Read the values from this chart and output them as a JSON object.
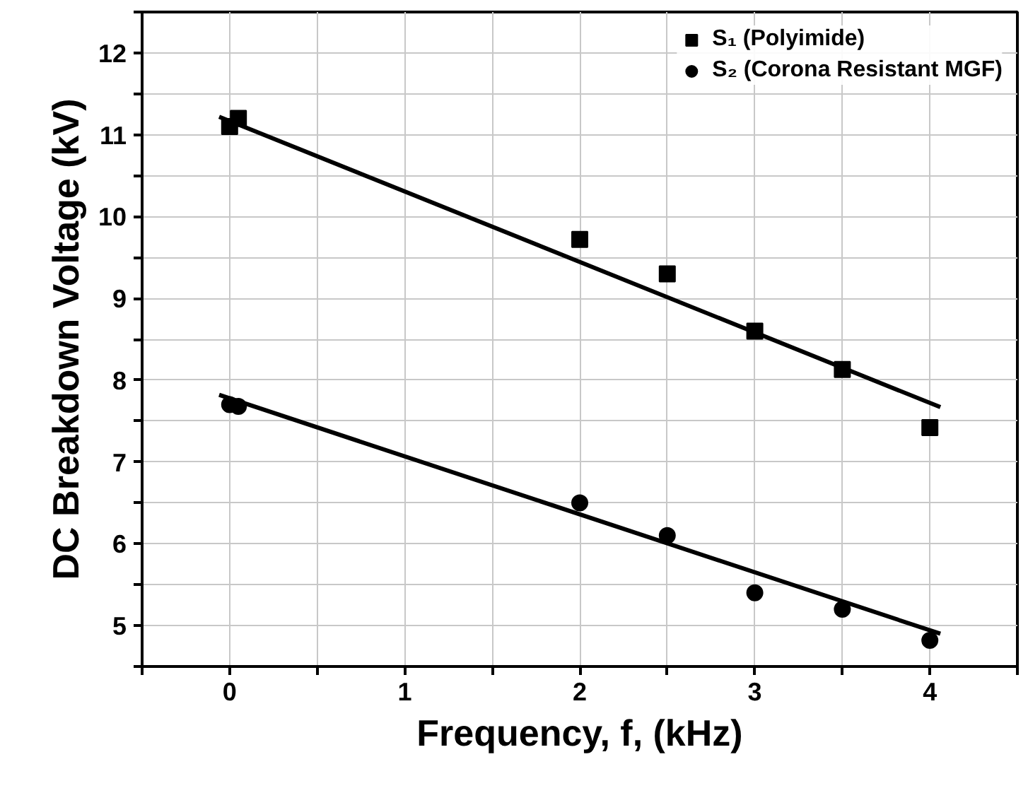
{
  "chart_data": {
    "type": "scatter",
    "xlabel": "Frequency, f, (kHz)",
    "ylabel": "DC Breakdown Voltage (kV)",
    "xlim": [
      -0.5,
      4.5
    ],
    "xticks": [
      {
        "value": -0.5,
        "label": null
      },
      0,
      {
        "value": 0.5,
        "label": null
      },
      1,
      {
        "value": 1.5,
        "label": null
      },
      2,
      {
        "value": 2.5,
        "label": null
      },
      3,
      {
        "value": 3.5,
        "label": null
      },
      4,
      {
        "value": 4.5,
        "label": null
      }
    ],
    "ylim": [
      4.5,
      12.5
    ],
    "yticks": [
      {
        "value": 4.5,
        "label": null
      },
      5,
      {
        "value": 5.5,
        "label": null
      },
      6,
      {
        "value": 6.5,
        "label": null
      },
      7,
      {
        "value": 7.5,
        "label": null
      },
      8,
      {
        "value": 8.5,
        "label": null
      },
      9,
      {
        "value": 9.5,
        "label": null
      },
      10,
      {
        "value": 10.5,
        "label": null
      },
      11,
      {
        "value": 11.5,
        "label": null
      },
      12,
      {
        "value": 12.5,
        "label": null
      }
    ],
    "grid": true,
    "legend": "top right",
    "series": [
      {
        "name": "S₁ (Polyimide)",
        "marker": "square",
        "color": "#000000",
        "x": [
          0,
          0.05,
          2,
          2.5,
          3,
          3.5,
          4
        ],
        "values": [
          11.1,
          11.2,
          9.72,
          9.3,
          8.6,
          8.13,
          7.42
        ]
      },
      {
        "name": "S₂ (Corona Resistant MGF)",
        "marker": "circle",
        "color": "#000000",
        "x": [
          0,
          0.05,
          2,
          2.5,
          3,
          3.5,
          4
        ],
        "values": [
          7.7,
          7.68,
          6.5,
          6.1,
          5.4,
          5.2,
          4.82
        ]
      },
      {
        "type": "line",
        "color": "#000000",
        "x": [
          -0.06,
          4.06
        ],
        "values": [
          11.22,
          7.67
        ]
      },
      {
        "type": "line",
        "color": "#000000",
        "x": [
          -0.06,
          4.06
        ],
        "values": [
          7.82,
          4.9
        ]
      }
    ]
  }
}
